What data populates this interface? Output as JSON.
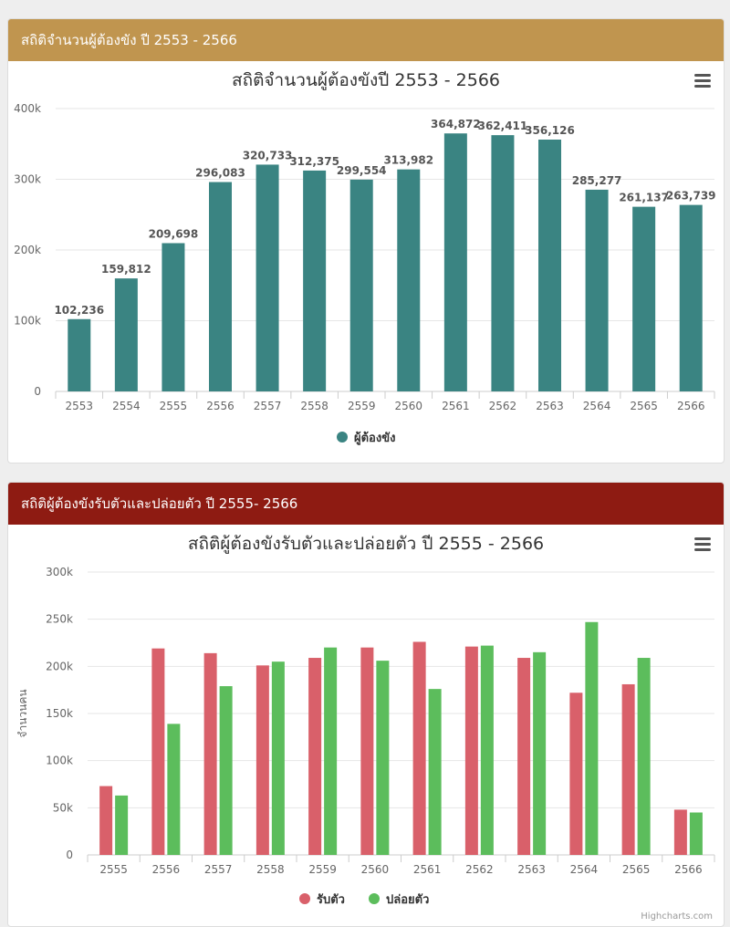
{
  "panels": [
    {
      "header": "สถิติจำนวนผู้ต้องขัง ปี 2553  -  2566"
    },
    {
      "header": "สถิติผู้ต้องขังรับตัวและปล่อยตัว ปี  2555-  2566"
    }
  ],
  "credit": "Highcharts.com",
  "menu_icon": "hamburger-menu-icon",
  "chart_data": [
    {
      "type": "bar",
      "title": "สถิติจำนวนผู้ต้องขังปี 2553 - 2566",
      "xlabel": "",
      "ylabel": "",
      "categories": [
        "2553",
        "2554",
        "2555",
        "2556",
        "2557",
        "2558",
        "2559",
        "2560",
        "2561",
        "2562",
        "2563",
        "2564",
        "2565",
        "2566"
      ],
      "series": [
        {
          "name": "ผู้ต้องขัง",
          "color": "#3a8482",
          "values": [
            102236,
            159812,
            209698,
            296083,
            320733,
            312375,
            299554,
            313982,
            364872,
            362411,
            356126,
            285277,
            261137,
            263739
          ],
          "labels": [
            "102,236",
            "159,812",
            "209,698",
            "296,083",
            "320,733",
            "312,375",
            "299,554",
            "313,982",
            "364,872",
            "362,411",
            "356,126",
            "285,277",
            "261,137",
            "263,739"
          ]
        }
      ],
      "ylim": [
        0,
        400000
      ],
      "yticks": [
        "0",
        "100k",
        "200k",
        "300k",
        "400k"
      ],
      "grid": true,
      "legend": "bottom-center"
    },
    {
      "type": "bar",
      "title": "สถิติผู้ต้องขังรับตัวและปล่อยตัว ปี 2555 - 2566",
      "xlabel": "",
      "ylabel": "จำนวนคน",
      "categories": [
        "2555",
        "2556",
        "2557",
        "2558",
        "2559",
        "2560",
        "2561",
        "2562",
        "2563",
        "2564",
        "2565",
        "2566"
      ],
      "series": [
        {
          "name": "รับตัว",
          "color": "#d9606a",
          "values": [
            73000,
            219000,
            214000,
            201000,
            209000,
            220000,
            226000,
            221000,
            209000,
            172000,
            181000,
            48000
          ]
        },
        {
          "name": "ปล่อยตัว",
          "color": "#5cbd5c",
          "values": [
            63000,
            139000,
            179000,
            205000,
            220000,
            206000,
            176000,
            222000,
            215000,
            247000,
            209000,
            45000
          ]
        }
      ],
      "ylim": [
        0,
        300000
      ],
      "yticks": [
        "0",
        "50k",
        "100k",
        "150k",
        "200k",
        "250k",
        "300k"
      ],
      "grid": true,
      "legend": "bottom-center"
    }
  ]
}
